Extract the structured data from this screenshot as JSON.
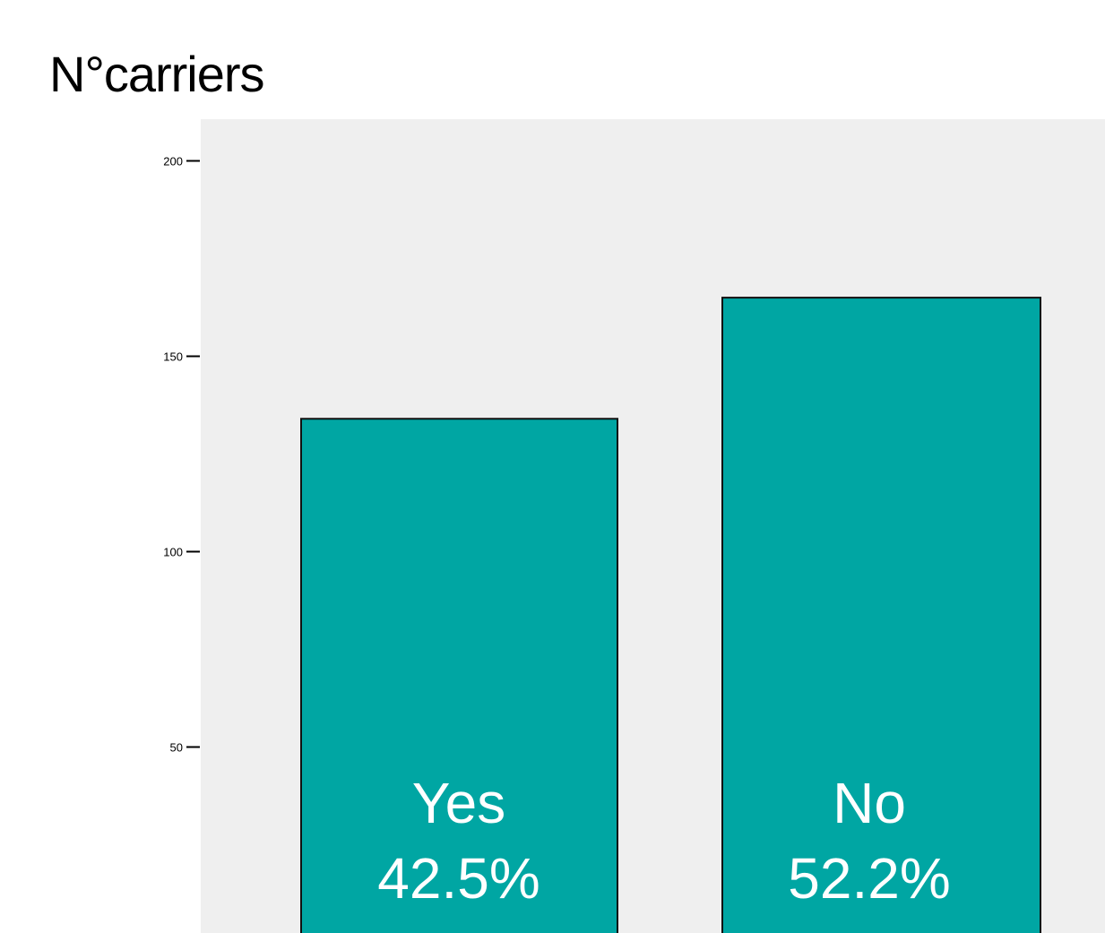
{
  "title": "N°carriers",
  "colors": {
    "plot_background": "#efefef",
    "bar_fill": "#00a6a3",
    "bar_stroke": "#111111",
    "bar_text": "#ffffff"
  },
  "chart_data": {
    "type": "bar",
    "title": "N°carriers",
    "categories": [
      "Yes",
      "No"
    ],
    "values": [
      134,
      165
    ],
    "bar_labels": [
      "42.5%",
      "52.2%"
    ],
    "ylim": [
      0,
      200
    ],
    "yticks": [
      50,
      100,
      150,
      200
    ],
    "ytick_labels": [
      "50",
      "100",
      "150",
      "200"
    ],
    "xlabel": "",
    "ylabel": "",
    "grid": false
  }
}
